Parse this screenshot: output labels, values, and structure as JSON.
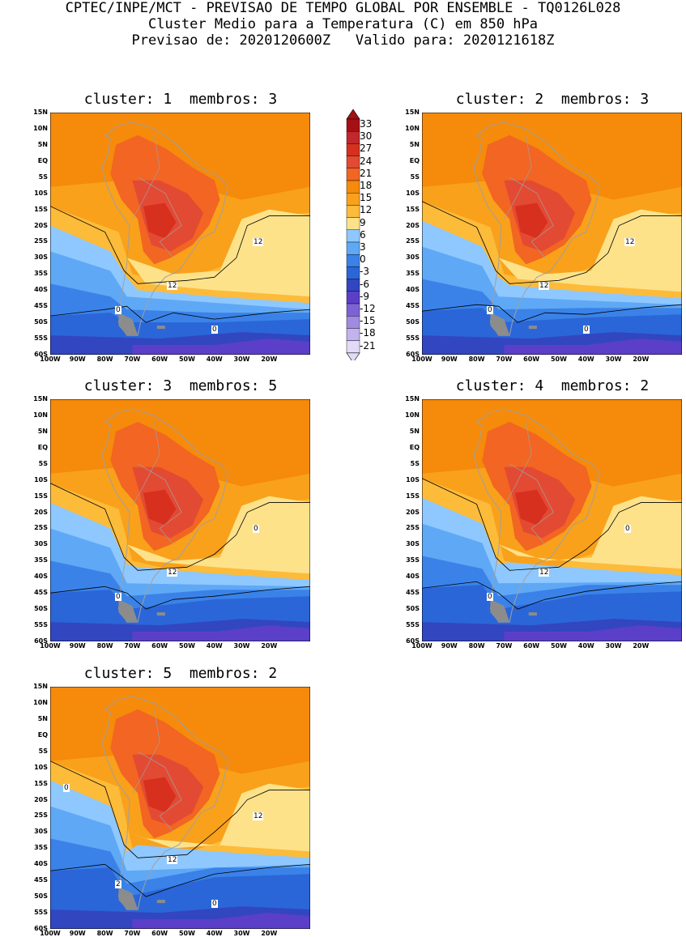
{
  "header": {
    "line1": "CPTEC/INPE/MCT - PREVISAO DE TEMPO GLOBAL POR ENSEMBLE - TQ0126L028",
    "line2": "Cluster Medio para a Temperatura (C) em 850 hPa",
    "line3": "Previsao de: 2020120600Z   Valido para: 2020121618Z"
  },
  "lat_ticks": [
    "15N",
    "10N",
    "5N",
    "EQ",
    "5S",
    "10S",
    "15S",
    "20S",
    "25S",
    "30S",
    "35S",
    "40S",
    "45S",
    "50S",
    "55S",
    "60S"
  ],
  "lon_ticks": [
    "100W",
    "90W",
    "80W",
    "70W",
    "60W",
    "50W",
    "40W",
    "30W",
    "20W"
  ],
  "panels": [
    {
      "title": "cluster: 1  membros: 3",
      "contour_labels": [
        "12",
        "12",
        "0",
        "0"
      ]
    },
    {
      "title": "cluster: 2  membros: 3",
      "contour_labels": [
        "12",
        "12",
        "0",
        "0"
      ]
    },
    {
      "title": "cluster: 3  membros: 5",
      "contour_labels": [
        "12",
        "0",
        "0"
      ]
    },
    {
      "title": "cluster: 4  membros: 2",
      "contour_labels": [
        "12",
        "0",
        "0"
      ]
    },
    {
      "title": "cluster: 5  membros: 2",
      "contour_labels": [
        "12",
        "12",
        "2",
        "0",
        "0"
      ]
    }
  ],
  "colorbar": {
    "labels": [
      "33",
      "30",
      "27",
      "24",
      "21",
      "18",
      "15",
      "12",
      "9",
      "6",
      "3",
      "0",
      "-3",
      "-6",
      "-9",
      "-12",
      "-15",
      "-18",
      "-21"
    ],
    "colors": [
      "#a50f15",
      "#c1272d",
      "#d7301f",
      "#e34a33",
      "#f26522",
      "#f58a0b",
      "#f9a11b",
      "#fdbb3a",
      "#fee28a",
      "#8ec8ff",
      "#5fa8f5",
      "#3a82e8",
      "#2a66d8",
      "#3246c0",
      "#5b3fc8",
      "#7d62d6",
      "#a08ae2",
      "#c2b3ee",
      "#e2dbf8"
    ]
  }
}
